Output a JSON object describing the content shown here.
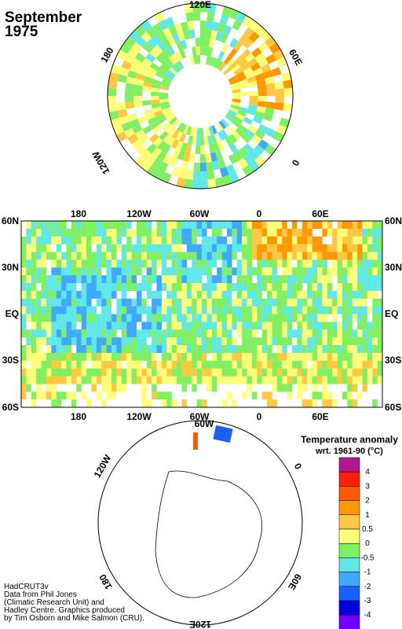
{
  "title": [
    "September",
    "1975"
  ],
  "north_polar": {
    "labels": [
      "120E",
      "60E",
      "0",
      "120W",
      "180"
    ]
  },
  "main_map": {
    "top_labels": [
      "180",
      "120W",
      "60W",
      "0",
      "60E"
    ],
    "bottom_labels": [
      "180",
      "120W",
      "60W",
      "0",
      "60E"
    ],
    "left_labels": [
      "60N",
      "30N",
      "EQ",
      "30S",
      "60S"
    ],
    "right_labels": [
      "60N",
      "30N",
      "EQ",
      "30S",
      "60S"
    ]
  },
  "south_polar": {
    "labels": [
      "60W",
      "0",
      "60E",
      "120E",
      "180",
      "120W"
    ]
  },
  "legend": {
    "title": [
      "Temperature anomaly",
      "wrt. 1961-90  (°C)"
    ],
    "colors": [
      "#b01890",
      "#ff2000",
      "#ff5a00",
      "#ff9800",
      "#ffc840",
      "#ffff78",
      "#80f060",
      "#60e8e8",
      "#40a8ff",
      "#1860ff",
      "#0000e0",
      "#7000ff"
    ],
    "labels": [
      4,
      3,
      2,
      1,
      0.5,
      0,
      -0.5,
      -1,
      -2,
      -3,
      -4
    ]
  },
  "credits": [
    "HadCRUT3v",
    "Data from Phil Jones",
    "(Climatic Research Unit) and",
    "Hadley Centre.  Graphics produced",
    "by Tim Osborn and Mike Salmon (CRU)."
  ]
}
